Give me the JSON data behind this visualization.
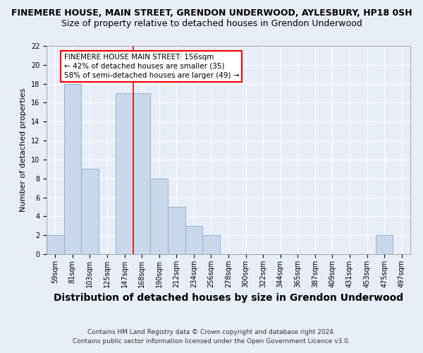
{
  "title": "FINEMERE HOUSE, MAIN STREET, GRENDON UNDERWOOD, AYLESBURY, HP18 0SH",
  "subtitle": "Size of property relative to detached houses in Grendon Underwood",
  "xlabel": "Distribution of detached houses by size in Grendon Underwood",
  "ylabel": "Number of detached properties",
  "bins": [
    "59sqm",
    "81sqm",
    "103sqm",
    "125sqm",
    "147sqm",
    "168sqm",
    "190sqm",
    "212sqm",
    "234sqm",
    "256sqm",
    "278sqm",
    "300sqm",
    "322sqm",
    "344sqm",
    "365sqm",
    "387sqm",
    "409sqm",
    "431sqm",
    "453sqm",
    "475sqm",
    "497sqm"
  ],
  "values": [
    2,
    18,
    9,
    0,
    17,
    17,
    8,
    5,
    3,
    2,
    0,
    0,
    0,
    0,
    0,
    0,
    0,
    0,
    0,
    2,
    0
  ],
  "bar_color": "#c8d8ea",
  "bar_edge_color": "#8aaac8",
  "ylim": [
    0,
    22
  ],
  "yticks": [
    0,
    2,
    4,
    6,
    8,
    10,
    12,
    14,
    16,
    18,
    20,
    22
  ],
  "property_line_x": 4.5,
  "annotation_title": "FINEMERE HOUSE MAIN STREET: 156sqm",
  "annotation_line1": "← 42% of detached houses are smaller (35)",
  "annotation_line2": "58% of semi-detached houses are larger (49) →",
  "footer_line1": "Contains HM Land Registry data © Crown copyright and database right 2024.",
  "footer_line2": "Contains public sector information licensed under the Open Government Licence v3.0.",
  "bg_color": "#e8eef8",
  "plot_bg_color": "#e8eef8",
  "grid_color": "#ffffff",
  "title_fontsize": 9,
  "subtitle_fontsize": 9,
  "xlabel_fontsize": 10,
  "ylabel_fontsize": 8,
  "tick_fontsize": 7,
  "annotation_fontsize": 7.5,
  "footer_fontsize": 6.5
}
